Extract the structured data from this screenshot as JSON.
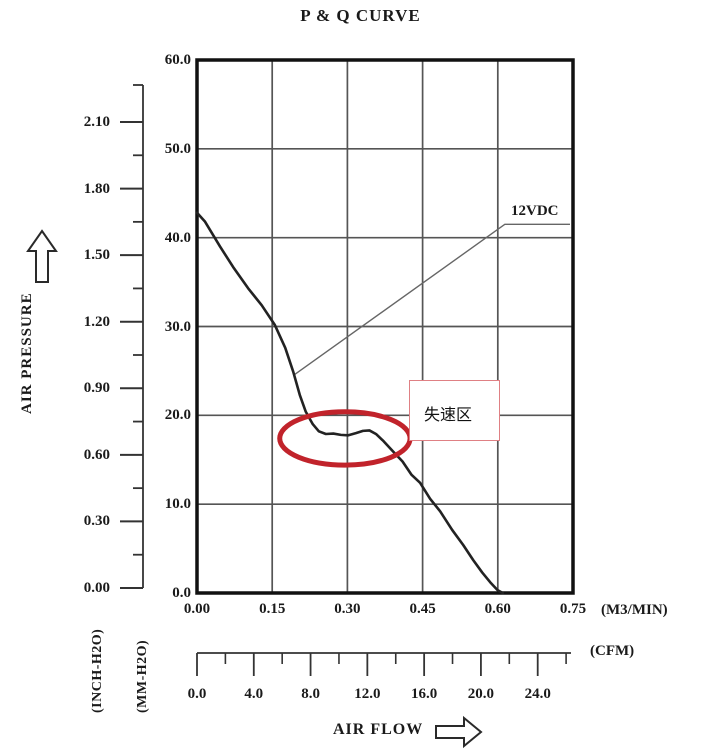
{
  "title": "P & Q CURVE",
  "labels": {
    "air_pressure": "AIR PRESSURE",
    "air_flow": "AIR FLOW",
    "inch_h2o": "(INCH-H2O)",
    "mm_h2o": "(MM-H2O)",
    "m3min_unit": "(M3/MIN)",
    "cfm_unit": "(CFM)",
    "voltage": "12VDC",
    "stall_region": "失速区"
  },
  "colors": {
    "annotation_red": "#c1232b",
    "box_border": "#df8084",
    "curve": "#222222",
    "grid": "#555555",
    "axis": "#333333",
    "leader": "#666666"
  },
  "chart_data": {
    "type": "line",
    "title": "P & Q CURVE",
    "grid": true,
    "x_axis": {
      "label": "AIR FLOW",
      "primary_unit": "M3/MIN",
      "primary_range": [
        0,
        0.75
      ],
      "primary_ticks": [
        0.0,
        0.15,
        0.3,
        0.45,
        0.6,
        0.75
      ],
      "secondary_unit": "CFM",
      "secondary_ticks": [
        0.0,
        4.0,
        8.0,
        12.0,
        16.0,
        20.0,
        24.0
      ],
      "secondary_minor_ticks": [
        2.0,
        6.0,
        10.0,
        14.0,
        18.0,
        22.0,
        26.0
      ],
      "cfm_per_m3min": 35.315
    },
    "y_axis": {
      "label": "AIR PRESSURE",
      "primary_unit": "MM-H2O",
      "primary_range": [
        0,
        60
      ],
      "primary_ticks": [
        0.0,
        10.0,
        20.0,
        30.0,
        40.0,
        50.0,
        60.0
      ],
      "secondary_unit": "INCH-H2O",
      "secondary_ticks": [
        0.0,
        0.3,
        0.6,
        0.9,
        1.2,
        1.5,
        1.8,
        2.1
      ],
      "secondary_minor_step": 0.15
    },
    "series": [
      {
        "name": "12VDC",
        "points_m3min_mmh2o": [
          [
            0.0,
            42.8
          ],
          [
            0.016,
            41.8
          ],
          [
            0.046,
            39.0
          ],
          [
            0.072,
            36.7
          ],
          [
            0.102,
            34.3
          ],
          [
            0.129,
            32.4
          ],
          [
            0.155,
            30.2
          ],
          [
            0.176,
            27.6
          ],
          [
            0.192,
            24.9
          ],
          [
            0.205,
            22.3
          ],
          [
            0.217,
            20.4
          ],
          [
            0.231,
            19.0
          ],
          [
            0.243,
            18.2
          ],
          [
            0.257,
            17.9
          ],
          [
            0.272,
            17.95
          ],
          [
            0.287,
            17.8
          ],
          [
            0.301,
            17.75
          ],
          [
            0.317,
            18.0
          ],
          [
            0.331,
            18.25
          ],
          [
            0.344,
            18.3
          ],
          [
            0.357,
            17.9
          ],
          [
            0.372,
            17.1
          ],
          [
            0.39,
            16.0
          ],
          [
            0.41,
            14.8
          ],
          [
            0.428,
            13.3
          ],
          [
            0.445,
            12.4
          ],
          [
            0.465,
            10.6
          ],
          [
            0.485,
            9.2
          ],
          [
            0.509,
            7.1
          ],
          [
            0.531,
            5.4
          ],
          [
            0.551,
            3.7
          ],
          [
            0.569,
            2.3
          ],
          [
            0.585,
            1.2
          ],
          [
            0.6,
            0.3
          ],
          [
            0.61,
            0.0
          ]
        ]
      }
    ],
    "annotations": {
      "stall_label": "失速区",
      "stall_ellipse": {
        "cx_m3min": 0.295,
        "cy_mmh2o": 17.4,
        "rx_m3min": 0.13,
        "ry_mmh2o": 3.0
      },
      "series_label": {
        "text": "12VDC",
        "leader_m3min_mmh2o": [
          [
            0.195,
            24.6
          ],
          [
            0.614,
            41.5
          ],
          [
            0.744,
            41.5
          ]
        ]
      }
    }
  }
}
